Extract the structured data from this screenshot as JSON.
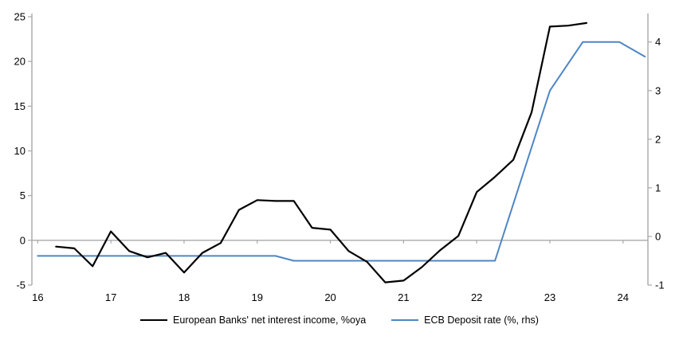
{
  "chart_data": {
    "type": "line",
    "title": "",
    "legend_position": "bottom",
    "grid": "zero-line-only",
    "series": [
      {
        "name": "European Banks' net interest income, %oya",
        "axis": "left",
        "color": "#000000",
        "stroke_width": 2.2,
        "points": [
          [
            16.25,
            -0.7
          ],
          [
            16.5,
            -0.9
          ],
          [
            16.75,
            -2.9
          ],
          [
            17.0,
            1.0
          ],
          [
            17.25,
            -1.2
          ],
          [
            17.5,
            -1.9
          ],
          [
            17.75,
            -1.4
          ],
          [
            18.0,
            -3.6
          ],
          [
            18.25,
            -1.4
          ],
          [
            18.5,
            -0.3
          ],
          [
            18.75,
            3.4
          ],
          [
            19.0,
            4.5
          ],
          [
            19.25,
            4.4
          ],
          [
            19.5,
            4.4
          ],
          [
            19.75,
            1.4
          ],
          [
            20.0,
            1.2
          ],
          [
            20.25,
            -1.2
          ],
          [
            20.5,
            -2.4
          ],
          [
            20.75,
            -4.7
          ],
          [
            21.0,
            -4.5
          ],
          [
            21.25,
            -3.0
          ],
          [
            21.5,
            -1.1
          ],
          [
            21.75,
            0.5
          ],
          [
            22.0,
            5.4
          ],
          [
            22.25,
            7.1
          ],
          [
            22.5,
            9.0
          ],
          [
            22.75,
            14.3
          ],
          [
            23.0,
            23.9
          ],
          [
            23.25,
            24.0
          ],
          [
            23.5,
            24.3
          ]
        ]
      },
      {
        "name": "ECB Deposit rate (%, rhs)",
        "axis": "right",
        "color": "#4E86C4",
        "stroke_width": 2,
        "points": [
          [
            16.0,
            -0.4
          ],
          [
            19.25,
            -0.4
          ],
          [
            19.5,
            -0.5
          ],
          [
            22.25,
            -0.5
          ],
          [
            23.0,
            3.0
          ],
          [
            23.45,
            4.0
          ],
          [
            23.95,
            4.0
          ],
          [
            24.3,
            3.7
          ]
        ]
      }
    ],
    "left_axis": {
      "min": -5,
      "max": 25,
      "ticks": [
        -5,
        0,
        5,
        10,
        15,
        20,
        25
      ]
    },
    "right_axis": {
      "min": -1,
      "max": 4.52,
      "ticks": [
        -1,
        0,
        1,
        2,
        3,
        4
      ]
    },
    "x_axis": {
      "min": 15.92,
      "max": 24.34,
      "tick_values": [
        16,
        17,
        18,
        19,
        20,
        21,
        22,
        23,
        24
      ],
      "tick_labels": [
        "16",
        "17",
        "18",
        "19",
        "20",
        "21",
        "22",
        "23",
        "24"
      ]
    },
    "colors": {
      "axis_line": "#A8A8A8",
      "zero_line": "#A8A8A8",
      "tick_text": "#000000"
    }
  }
}
